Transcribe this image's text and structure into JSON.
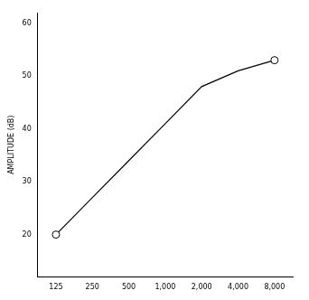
{
  "chart_data": {
    "type": "line",
    "y_label": "AMPLITUDE (dB)",
    "categories": [
      "125",
      "250",
      "500",
      "1,000",
      "2,000",
      "4,000",
      "8,000"
    ],
    "values": [
      20,
      27,
      34,
      41,
      48,
      51,
      53
    ],
    "color": "#000000",
    "marker": "circle",
    "ylim": [
      12,
      62
    ],
    "yticks": [
      20,
      30,
      40,
      50,
      60
    ],
    "grid": false
  }
}
